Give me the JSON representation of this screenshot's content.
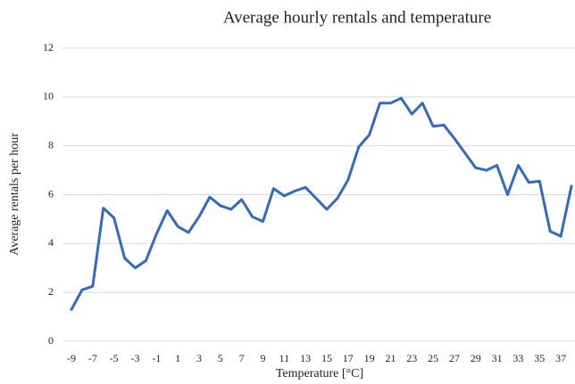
{
  "chart_data": {
    "type": "line",
    "title": "Average hourly rentals and temperature",
    "x_label": "Temperature [°C]",
    "y_label": "Average rentals per hour",
    "categories": [
      "-9",
      null,
      "-7",
      null,
      "-5",
      null,
      "-3",
      null,
      "-1",
      null,
      "1",
      null,
      "3",
      null,
      "5",
      null,
      "7",
      null,
      "9",
      null,
      "11",
      null,
      "13",
      null,
      "15",
      null,
      "17",
      null,
      "19",
      null,
      "21",
      null,
      "23",
      null,
      "25",
      null,
      "27",
      null,
      "29",
      null,
      "31",
      null,
      "33",
      null,
      "35",
      null,
      "37",
      null
    ],
    "values": [
      1.3,
      2.1,
      2.25,
      5.45,
      5.05,
      3.4,
      3.0,
      3.3,
      4.4,
      5.35,
      4.7,
      4.45,
      5.1,
      5.9,
      5.55,
      5.4,
      5.8,
      5.1,
      4.9,
      6.25,
      5.95,
      6.15,
      6.3,
      5.85,
      5.4,
      5.85,
      6.6,
      7.95,
      8.45,
      9.75,
      9.75,
      9.95,
      9.3,
      9.75,
      8.8,
      8.85,
      8.3,
      7.7,
      7.1,
      7.0,
      7.2,
      6.0,
      7.2,
      6.5,
      6.55,
      4.5,
      4.3,
      6.35
    ],
    "color": "#3368c4",
    "ylim": [
      0,
      12
    ],
    "yticks": [
      0,
      2,
      4,
      6,
      8,
      10,
      12
    ],
    "grid": true
  }
}
